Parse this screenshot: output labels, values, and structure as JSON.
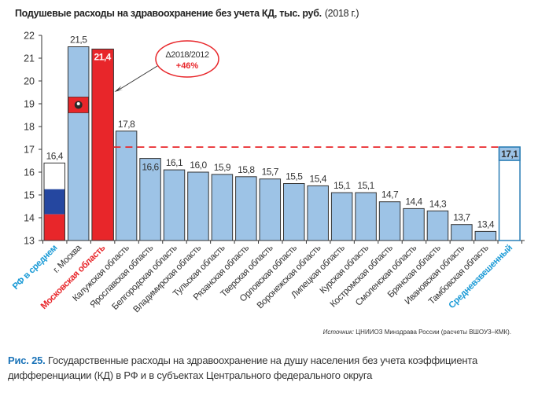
{
  "chart_data": {
    "type": "bar",
    "title": "Подушевые расходы на здравоохранение без учета КД, тыс. руб.",
    "title_note": "(2018 г.)",
    "xlabel": "",
    "ylabel": "",
    "ylim": [
      13,
      22
    ],
    "yticks": [
      13,
      14,
      15,
      16,
      17,
      18,
      19,
      20,
      21,
      22
    ],
    "grid": false,
    "categories": [
      "РФ в среднем",
      "г. Москва",
      "Московская область",
      "Калужская область",
      "Ярославская область",
      "Белгородская область",
      "Владимирская область",
      "Тульская область",
      "Рязанская область",
      "Тверская область",
      "Орловская область",
      "Воронежская область",
      "Липецкая область",
      "Курская область",
      "Костромская область",
      "Смоленская область",
      "Брянская область",
      "Ивановская область",
      "Тамбовская область",
      "Средневзвешенный"
    ],
    "values": [
      16.4,
      21.5,
      21.4,
      17.8,
      16.6,
      16.1,
      16.0,
      15.9,
      15.8,
      15.7,
      15.5,
      15.4,
      15.1,
      15.1,
      14.7,
      14.4,
      14.3,
      13.7,
      13.4,
      17.1
    ],
    "value_labels": [
      "16,4",
      "21,5",
      "21,4",
      "17,8",
      "16,6",
      "16,1",
      "16,0",
      "15,9",
      "15,8",
      "15,7",
      "15,5",
      "15,4",
      "15,1",
      "15,1",
      "14,7",
      "14,4",
      "14,3",
      "13,7",
      "13,4",
      "17,1"
    ],
    "bar_styles": [
      "flag-ru",
      "moscow",
      "highlight-red",
      "default",
      "default",
      "default",
      "default",
      "default",
      "default",
      "default",
      "default",
      "default",
      "default",
      "default",
      "default",
      "default",
      "default",
      "default",
      "default",
      "weighted"
    ],
    "label_colors": [
      "#1a9ad6",
      "#333333",
      "#e8262a",
      "#333333",
      "#333333",
      "#333333",
      "#333333",
      "#333333",
      "#333333",
      "#333333",
      "#333333",
      "#333333",
      "#333333",
      "#333333",
      "#333333",
      "#333333",
      "#333333",
      "#333333",
      "#333333",
      "#1a9ad6"
    ],
    "reference_line": {
      "value": 17.1,
      "style": "dashed",
      "color": "#e8262a"
    },
    "annotation": {
      "line1": "Δ2018/2012",
      "line2": "+46%",
      "points_to": "Московская область"
    },
    "colors": {
      "bar_fill": "#9dc3e6",
      "bar_stroke": "#333333",
      "highlight": "#e8262a",
      "weighted_stroke": "#2a7db5",
      "flag_white": "#ffffff",
      "flag_blue": "#2547a0",
      "flag_red": "#e8262a"
    }
  },
  "source": {
    "prefix": "Источник:",
    "text": " ЦНИИОЗ Минздрава России (расчеты ВШОУЗ–КМК)."
  },
  "caption": {
    "figure": "Рис. 25.",
    "text": " Государственные расходы на здравоохранение на душу населения без учета коэффициента дифференциации (КД) в РФ и в субъектах Центрального федерального округа"
  }
}
